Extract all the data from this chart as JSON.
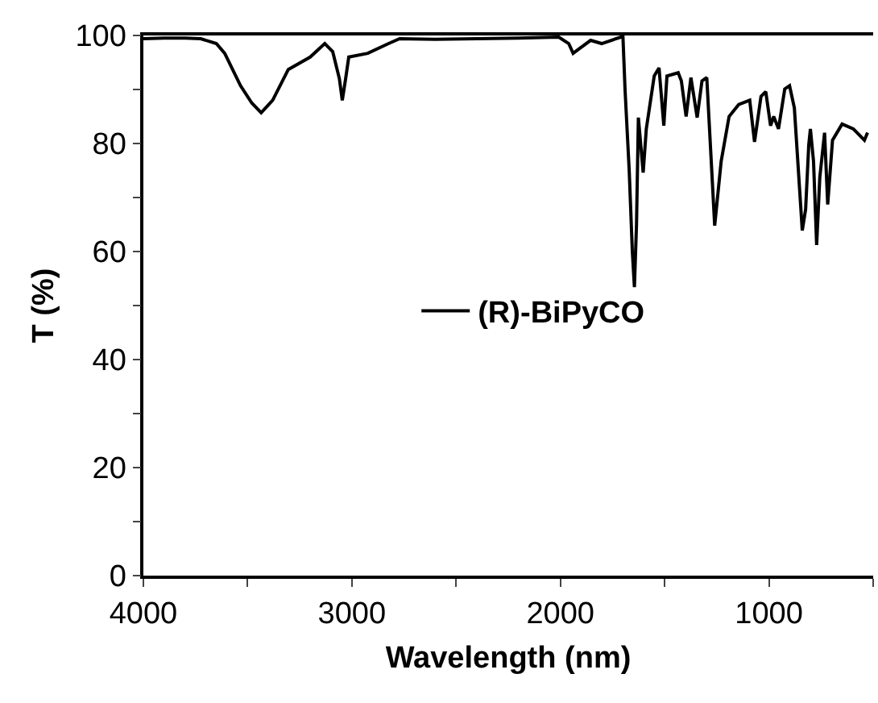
{
  "chart_data": {
    "type": "line",
    "xlabel": "Wavelength (nm)",
    "ylabel": "T (%)",
    "xlim": [
      4000,
      500
    ],
    "ylim": [
      0,
      100
    ],
    "xticks": [
      4000,
      {
        "value": 3500,
        "label": null
      },
      3000,
      {
        "value": 2500,
        "label": null
      },
      2000,
      {
        "value": 1500,
        "label": null
      },
      1000,
      {
        "value": 500,
        "label": null
      }
    ],
    "yticks": [
      0,
      {
        "value": 10,
        "label": null
      },
      20,
      {
        "value": 30,
        "label": null
      },
      40,
      {
        "value": 50,
        "label": null
      },
      60,
      {
        "value": 70,
        "label": null
      },
      80,
      {
        "value": 90,
        "label": null
      },
      100
    ],
    "grid": false,
    "legend": "center",
    "marker": "none",
    "line_style": "solid",
    "series": [
      {
        "name": "(R)-BiPyCO",
        "color": "#000000",
        "x": [
          4000,
          3900,
          3800,
          3725,
          3650,
          3610,
          3534,
          3480,
          3435,
          3380,
          3305,
          3200,
          3130,
          3092,
          3060,
          3046,
          3030,
          3015,
          2924,
          2824,
          2771,
          2600,
          2400,
          2200,
          2008,
          1960,
          1939,
          1908,
          1855,
          1802,
          1710,
          1700,
          1690,
          1670,
          1655,
          1645,
          1635,
          1626,
          1603,
          1588,
          1550,
          1527,
          1504,
          1489,
          1435,
          1420,
          1397,
          1374,
          1344,
          1321,
          1298,
          1260,
          1229,
          1191,
          1145,
          1092,
          1069,
          1038,
          1015,
          992,
          977,
          954,
          924,
          901,
          878,
          840,
          824,
          809,
          801,
          786,
          771,
          756,
          733,
          718,
          695,
          649,
          595,
          542,
          527
        ],
        "values": [
          99.4,
          99.5,
          99.5,
          99.4,
          98.5,
          96.7,
          90.7,
          87.5,
          85.7,
          88,
          93.7,
          96,
          98.5,
          97,
          92,
          88,
          92,
          96,
          96.7,
          98.5,
          99.4,
          99.3,
          99.4,
          99.5,
          99.7,
          98.5,
          96.7,
          97.6,
          99.1,
          98.5,
          99.7,
          99.7,
          90,
          75,
          60,
          53.4,
          65,
          84.8,
          74.6,
          82.7,
          92.5,
          94,
          83.3,
          92.5,
          93.1,
          91.6,
          85,
          92.2,
          84.8,
          91.6,
          92.2,
          64.8,
          76.7,
          85,
          87.2,
          88,
          80.3,
          88.7,
          89.6,
          83.3,
          85,
          82.7,
          90.1,
          90.7,
          86.6,
          63.9,
          67.8,
          79.7,
          82.7,
          76.7,
          61.2,
          73.7,
          82,
          68.7,
          80.6,
          83.6,
          82.7,
          80.6,
          82
        ]
      }
    ]
  }
}
